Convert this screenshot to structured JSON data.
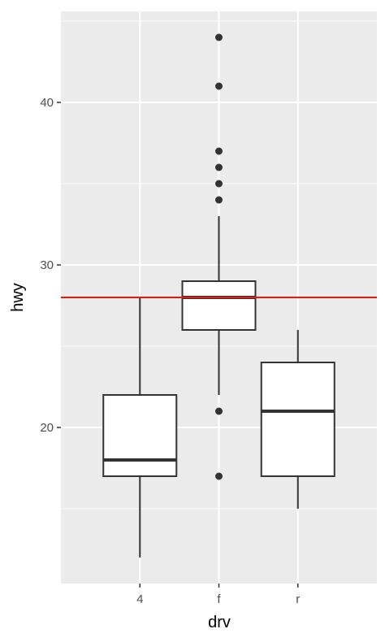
{
  "chart_data": {
    "type": "box",
    "xlabel": "drv",
    "ylabel": "hwy",
    "categories": [
      "4",
      "f",
      "r"
    ],
    "ylim": [
      10.4,
      45.6
    ],
    "yticks": [
      20,
      30,
      40
    ],
    "yticks_minor": [
      15,
      25,
      35,
      45
    ],
    "grid": true,
    "boxes": [
      {
        "category": "4",
        "whisker_low": 12,
        "q1": 17,
        "median": 18,
        "q3": 22,
        "whisker_high": 28,
        "outliers": []
      },
      {
        "category": "f",
        "whisker_low": 22,
        "q1": 26,
        "median": 28,
        "q3": 29,
        "whisker_high": 33,
        "outliers": [
          17,
          21,
          34,
          35,
          36,
          37,
          41,
          44
        ]
      },
      {
        "category": "r",
        "whisker_low": 15,
        "q1": 17,
        "median": 21,
        "q3": 24,
        "whisker_high": 26,
        "outliers": []
      }
    ],
    "reference_line": {
      "y": 28,
      "color": "#e8170f"
    },
    "colors": {
      "panel": "#ebebeb",
      "grid": "#ffffff",
      "box_stroke": "#333333",
      "box_fill": "#ffffff",
      "outlier": "#333333"
    }
  }
}
